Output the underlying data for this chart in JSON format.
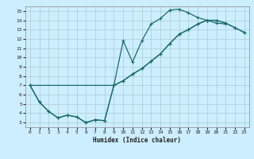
{
  "xlabel": "Humidex (Indice chaleur)",
  "bg_color": "#cceeff",
  "grid_color": "#aacccc",
  "line_color": "#1a6b6b",
  "xlim": [
    -0.5,
    23.5
  ],
  "ylim": [
    2.5,
    15.5
  ],
  "xticks": [
    0,
    1,
    2,
    3,
    4,
    5,
    6,
    7,
    8,
    9,
    10,
    11,
    12,
    13,
    14,
    15,
    16,
    17,
    18,
    19,
    20,
    21,
    22,
    23
  ],
  "yticks": [
    3,
    4,
    5,
    6,
    7,
    8,
    9,
    10,
    11,
    12,
    13,
    14,
    15
  ],
  "curve1_x": [
    0,
    1,
    2,
    3,
    4,
    5,
    6,
    7,
    8,
    9,
    10,
    11,
    12,
    13,
    14,
    15,
    16,
    17,
    18,
    19,
    20,
    21
  ],
  "curve1_y": [
    7.0,
    5.2,
    4.2,
    3.5,
    3.8,
    3.6,
    3.0,
    3.3,
    3.2,
    7.0,
    11.8,
    9.5,
    11.8,
    13.6,
    14.2,
    15.1,
    15.2,
    14.8,
    14.3,
    14.0,
    13.7,
    13.6
  ],
  "curve2_x": [
    0,
    9,
    10,
    11,
    12,
    13,
    14,
    15,
    16,
    17,
    18,
    19,
    20,
    21,
    22,
    23
  ],
  "curve2_y": [
    7.0,
    7.0,
    7.5,
    8.2,
    8.8,
    9.6,
    10.4,
    11.5,
    12.5,
    13.0,
    13.6,
    14.0,
    14.0,
    13.7,
    13.2,
    12.7
  ],
  "curve3_x": [
    0,
    1,
    2,
    3,
    4,
    5,
    6,
    7,
    8,
    9,
    10,
    11,
    12,
    13,
    14,
    15,
    16,
    17,
    18,
    19,
    20,
    21,
    22,
    23
  ],
  "curve3_y": [
    7.0,
    5.2,
    4.2,
    3.5,
    3.8,
    3.6,
    3.0,
    3.3,
    3.2,
    7.0,
    7.5,
    8.2,
    8.8,
    9.6,
    10.4,
    11.5,
    12.5,
    13.0,
    13.6,
    14.0,
    14.0,
    13.7,
    13.2,
    12.7
  ]
}
